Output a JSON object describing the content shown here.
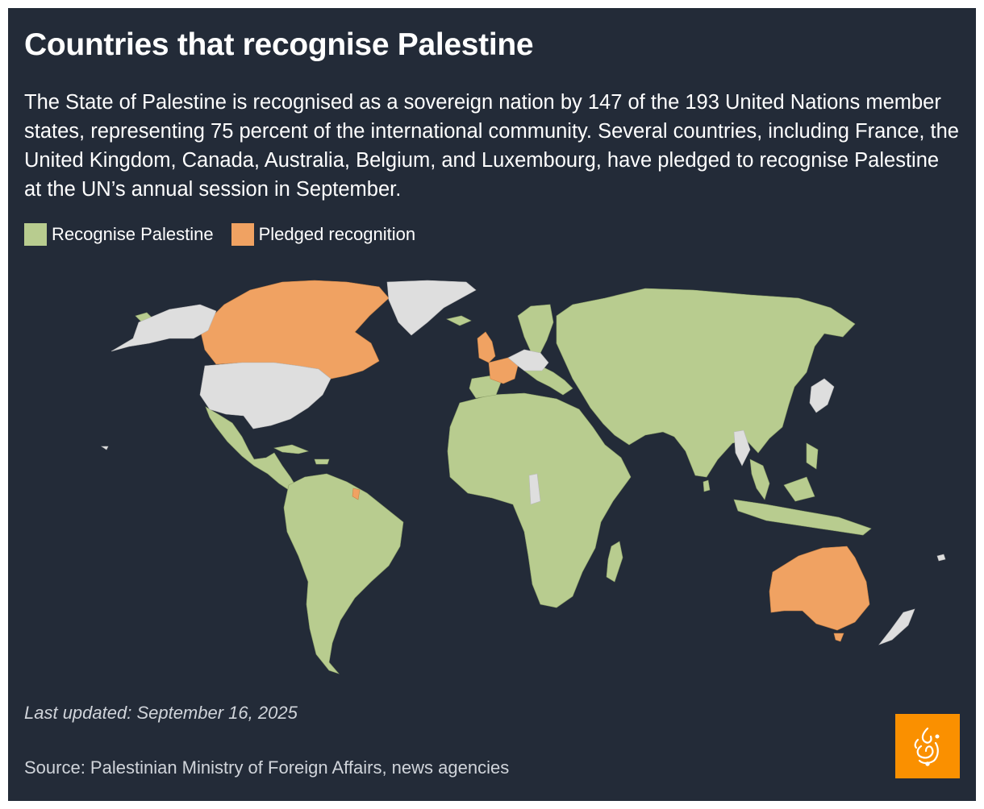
{
  "title": "Countries that recognise Palestine",
  "description": "The State of Palestine is recognised as a sovereign nation by 147 of the 193 United Nations member states, representing 75 percent of the international community. Several countries, including France, the United Kingdom, Canada, Australia, Belgium, and Luxembourg, have pledged to recognise Palestine at the UN’s annual session in September.",
  "legend": [
    {
      "label": "Recognise Palestine",
      "color": "#b8cc8f"
    },
    {
      "label": "Pledged recognition",
      "color": "#f0a262"
    }
  ],
  "colors": {
    "background": "#232b38",
    "recognise": "#b8cc8f",
    "pledged": "#f0a262",
    "other": "#dedede",
    "logo": "#fa9000"
  },
  "map": {
    "pledged_countries": [
      "France",
      "United Kingdom",
      "Canada",
      "Australia",
      "Belgium",
      "Luxembourg"
    ]
  },
  "last_updated": "Last updated: September 16, 2025",
  "source": "Source: Palestinian Ministry of Foreign Affairs, news agencies",
  "logo_icon": "al-jazeera-logo-icon"
}
